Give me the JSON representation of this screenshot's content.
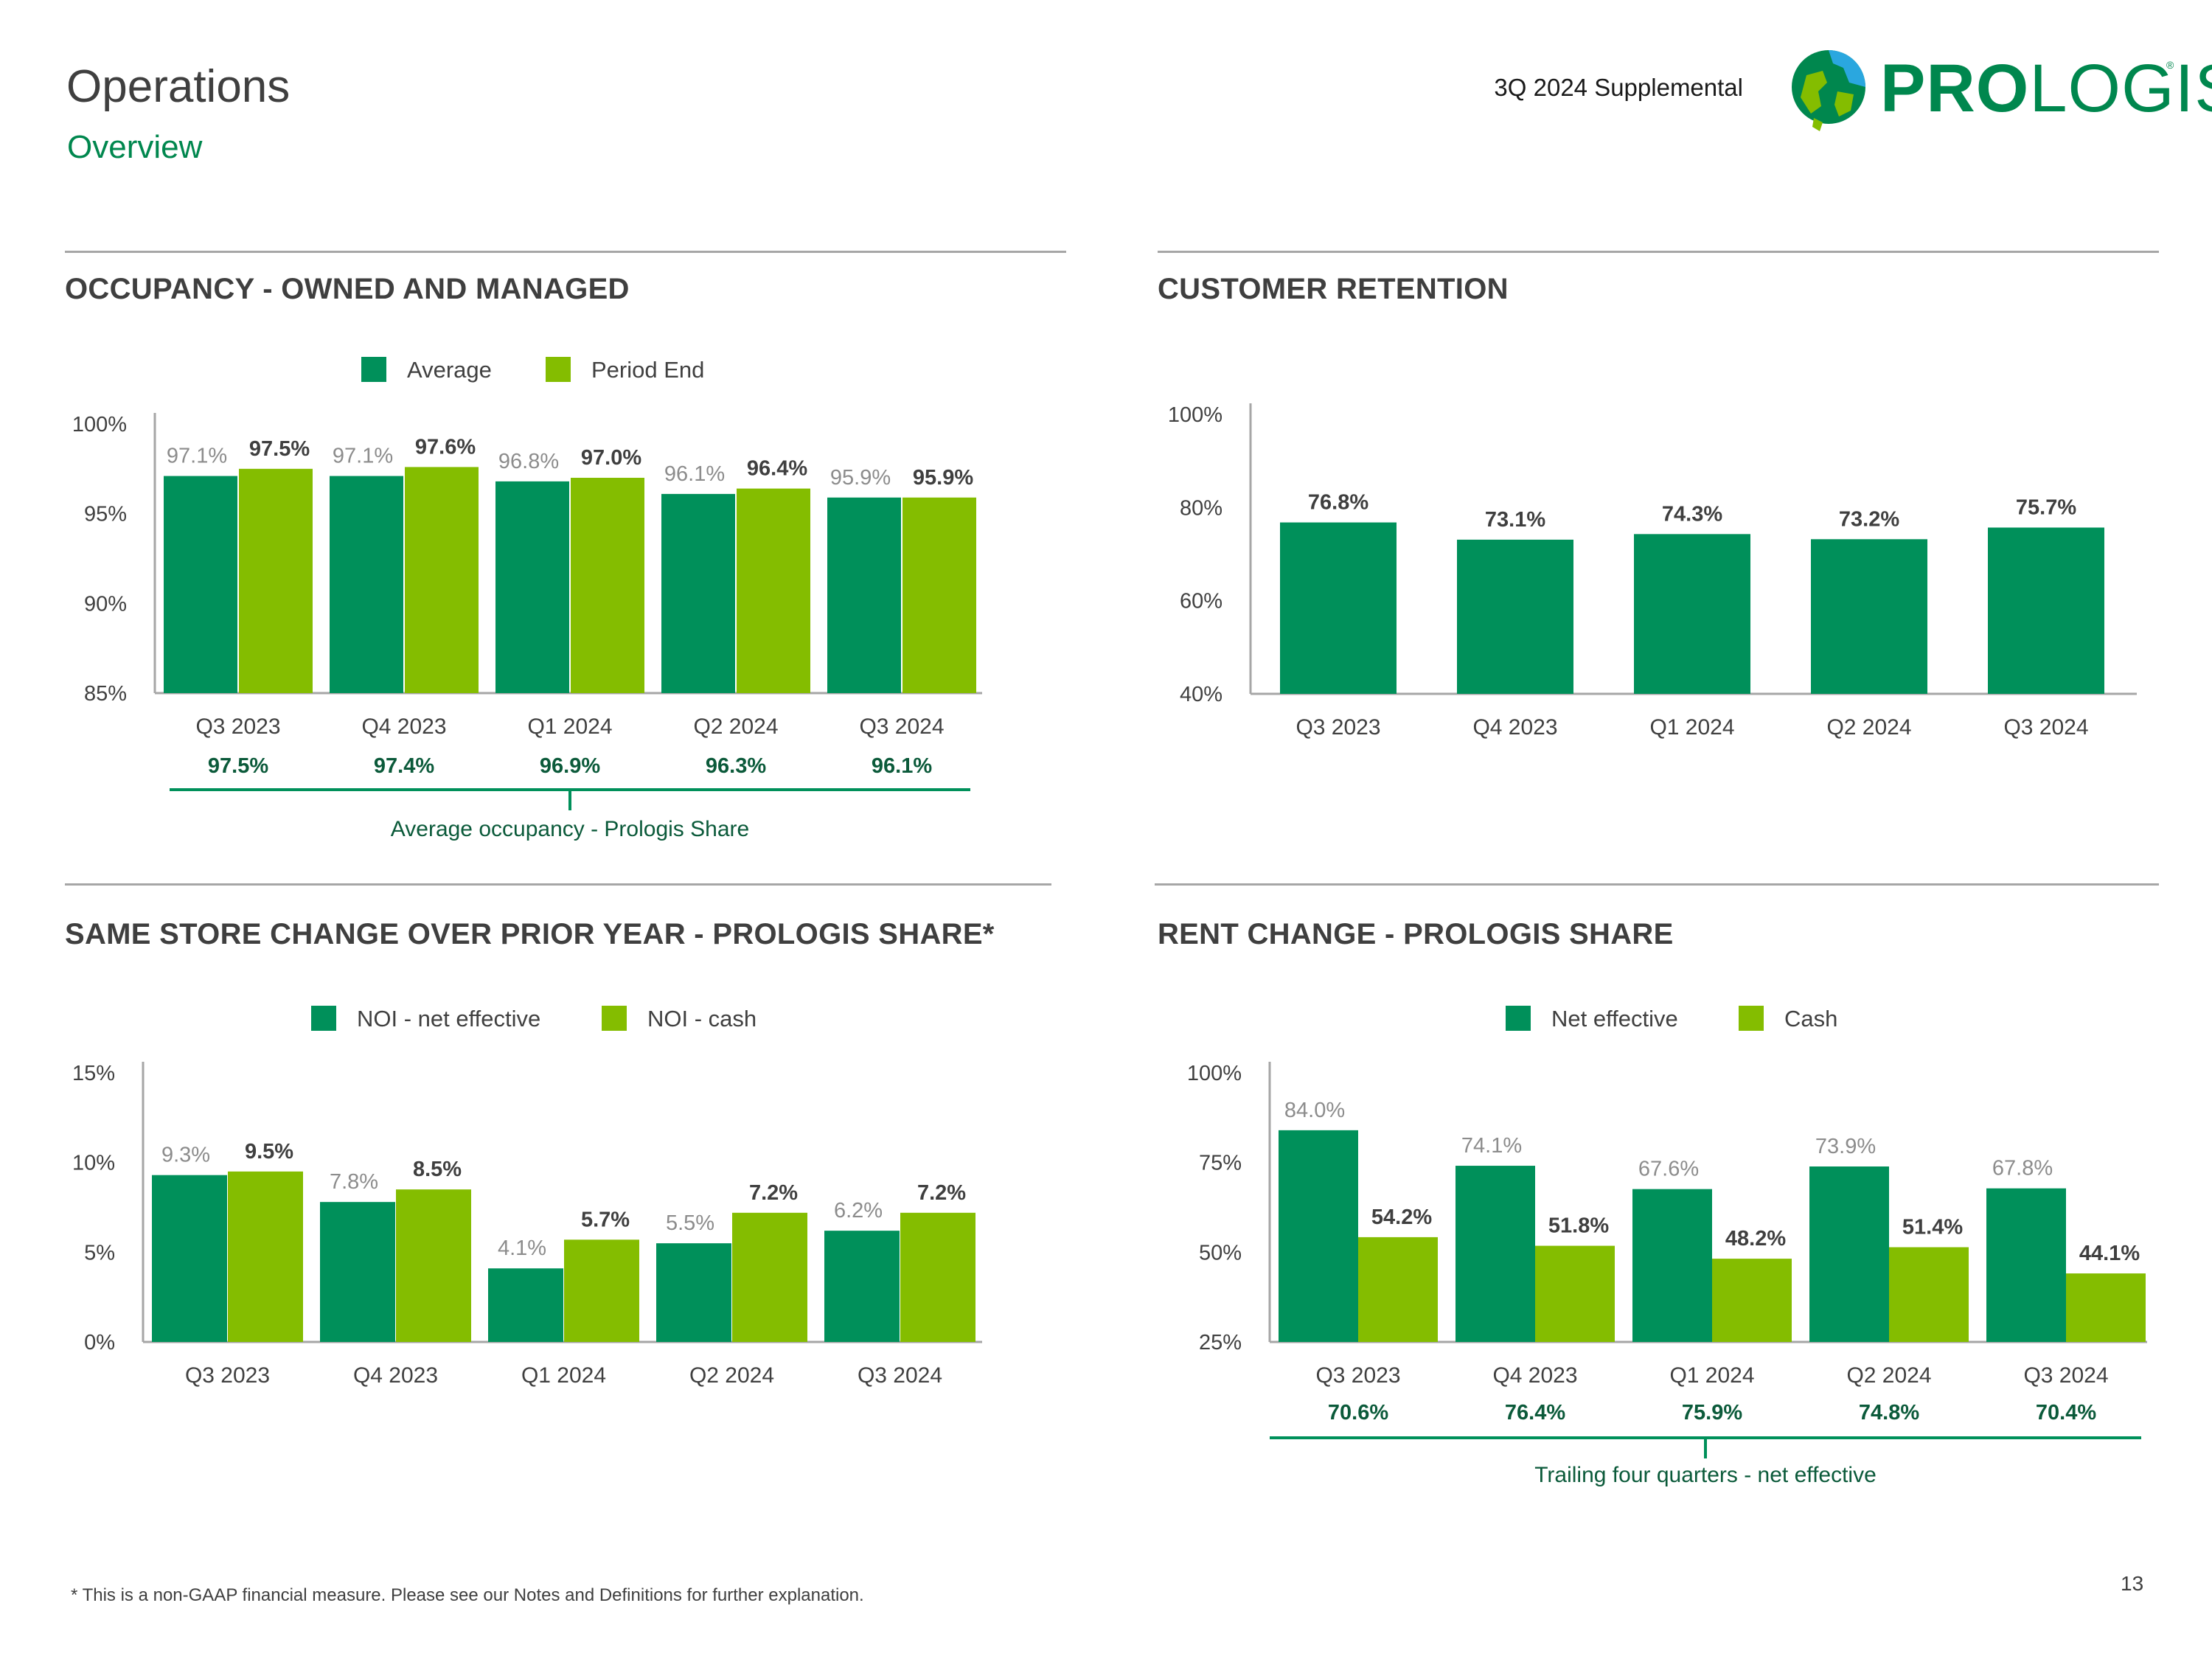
{
  "header": {
    "title": "Operations",
    "subtitle": "Overview",
    "supplemental": "3Q 2024 Supplemental",
    "logo_text_bold": "PRO",
    "logo_text_light": "LOGIS",
    "logo_reg": "®"
  },
  "colors": {
    "dark_green": "#00905a",
    "light_green": "#84bd00",
    "gray_label": "#8c8c8c",
    "dark_label": "#3f3f3f",
    "share_text": "#0b5a3a"
  },
  "sections": {
    "occupancy": "OCCUPANCY - OWNED AND MANAGED",
    "retention": "CUSTOMER RETENTION",
    "same_store": "SAME STORE CHANGE OVER PRIOR YEAR - PROLOGIS SHARE*",
    "rent_change": "RENT CHANGE - PROLOGIS SHARE"
  },
  "chart_data": [
    {
      "id": "occupancy",
      "type": "bar",
      "categories": [
        "Q3 2023",
        "Q4 2023",
        "Q1 2024",
        "Q2 2024",
        "Q3 2024"
      ],
      "series": [
        {
          "name": "Average",
          "values": [
            97.1,
            97.1,
            96.8,
            96.1,
            95.9
          ],
          "labels": [
            "97.1%",
            "97.1%",
            "96.8%",
            "96.1%",
            "95.9%"
          ]
        },
        {
          "name": "Period End",
          "values": [
            97.5,
            97.6,
            97.0,
            96.4,
            95.9
          ],
          "labels": [
            "97.5%",
            "97.6%",
            "97.0%",
            "96.4%",
            "95.9%"
          ]
        }
      ],
      "ylim": [
        85,
        100
      ],
      "yticks": [
        "85%",
        "90%",
        "95%",
        "100%"
      ],
      "ytick_values": [
        85,
        90,
        95,
        100
      ],
      "legend": "top-center",
      "footer_values": [
        "97.5%",
        "97.4%",
        "96.9%",
        "96.3%",
        "96.1%"
      ],
      "footer_label": "Average occupancy - Prologis Share"
    },
    {
      "id": "retention",
      "type": "bar",
      "categories": [
        "Q3 2023",
        "Q4 2023",
        "Q1 2024",
        "Q2 2024",
        "Q3 2024"
      ],
      "series": [
        {
          "values": [
            76.8,
            73.1,
            74.3,
            73.2,
            75.7
          ],
          "labels": [
            "76.8%",
            "73.1%",
            "74.3%",
            "73.2%",
            "75.7%"
          ]
        }
      ],
      "ylim": [
        40,
        100
      ],
      "yticks": [
        "40%",
        "60%",
        "80%",
        "100%"
      ],
      "ytick_values": [
        40,
        60,
        80,
        100
      ]
    },
    {
      "id": "same_store",
      "type": "bar",
      "categories": [
        "Q3 2023",
        "Q4 2023",
        "Q1 2024",
        "Q2 2024",
        "Q3 2024"
      ],
      "series": [
        {
          "name": "NOI - net effective",
          "values": [
            9.3,
            7.8,
            4.1,
            5.5,
            6.2
          ],
          "labels": [
            "9.3%",
            "7.8%",
            "4.1%",
            "5.5%",
            "6.2%"
          ]
        },
        {
          "name": "NOI - cash",
          "values": [
            9.5,
            8.5,
            5.7,
            7.2,
            7.2
          ],
          "labels": [
            "9.5%",
            "8.5%",
            "5.7%",
            "7.2%",
            "7.2%"
          ]
        }
      ],
      "ylim": [
        0,
        15
      ],
      "yticks": [
        "0%",
        "5%",
        "10%",
        "15%"
      ],
      "ytick_values": [
        0,
        5,
        10,
        15
      ],
      "legend": "top-center"
    },
    {
      "id": "rent_change",
      "type": "bar",
      "categories": [
        "Q3 2023",
        "Q4 2023",
        "Q1 2024",
        "Q2 2024",
        "Q3 2024"
      ],
      "series": [
        {
          "name": "Net effective",
          "values": [
            84.0,
            74.1,
            67.6,
            73.9,
            67.8
          ],
          "labels": [
            "84.0%",
            "74.1%",
            "67.6%",
            "73.9%",
            "67.8%"
          ]
        },
        {
          "name": "Cash",
          "values": [
            54.2,
            51.8,
            48.2,
            51.4,
            44.1
          ],
          "labels": [
            "54.2%",
            "51.8%",
            "48.2%",
            "51.4%",
            "44.1%"
          ]
        }
      ],
      "ylim": [
        25,
        100
      ],
      "yticks": [
        "25%",
        "50%",
        "75%",
        "100%"
      ],
      "ytick_values": [
        25,
        50,
        75,
        100
      ],
      "legend": "top-center",
      "footer_values": [
        "70.6%",
        "76.4%",
        "75.9%",
        "74.8%",
        "70.4%"
      ],
      "footer_label": "Trailing four quarters - net effective"
    }
  ],
  "footnote": "* This is a non-GAAP financial measure. Please see our Notes and Definitions for further explanation.",
  "page_number": "13"
}
